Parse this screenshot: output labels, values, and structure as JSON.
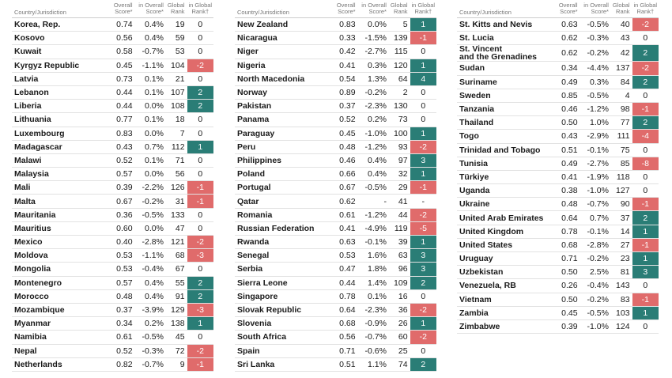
{
  "headers": [
    "Country/Jurisdiction",
    "Overall\nScore*",
    "in Overall\nScore*",
    "Global\nRank",
    "in Global\nRank†"
  ],
  "tables": [
    {
      "rows": [
        [
          "Korea, Rep.",
          "0.74",
          "0.4%",
          "19",
          "0"
        ],
        [
          "Kosovo",
          "0.56",
          "0.4%",
          "59",
          "0"
        ],
        [
          "Kuwait",
          "0.58",
          "-0.7%",
          "53",
          "0"
        ],
        [
          "Kyrgyz Republic",
          "0.45",
          "-1.1%",
          "104",
          "-2"
        ],
        [
          "Latvia",
          "0.73",
          "0.1%",
          "21",
          "0"
        ],
        [
          "Lebanon",
          "0.44",
          "0.1%",
          "107",
          "2"
        ],
        [
          "Liberia",
          "0.44",
          "0.0%",
          "108",
          "2"
        ],
        [
          "Lithuania",
          "0.77",
          "0.1%",
          "18",
          "0"
        ],
        [
          "Luxembourg",
          "0.83",
          "0.0%",
          "7",
          "0"
        ],
        [
          "Madagascar",
          "0.43",
          "0.7%",
          "112",
          "1"
        ],
        [
          "Malawi",
          "0.52",
          "0.1%",
          "71",
          "0"
        ],
        [
          "Malaysia",
          "0.57",
          "0.0%",
          "56",
          "0"
        ],
        [
          "Mali",
          "0.39",
          "-2.2%",
          "126",
          "-1"
        ],
        [
          "Malta",
          "0.67",
          "-0.2%",
          "31",
          "-1"
        ],
        [
          "Mauritania",
          "0.36",
          "-0.5%",
          "133",
          "0"
        ],
        [
          "Mauritius",
          "0.60",
          "0.0%",
          "47",
          "0"
        ],
        [
          "Mexico",
          "0.40",
          "-2.8%",
          "121",
          "-2"
        ],
        [
          "Moldova",
          "0.53",
          "-1.1%",
          "68",
          "-3"
        ],
        [
          "Mongolia",
          "0.53",
          "-0.4%",
          "67",
          "0"
        ],
        [
          "Montenegro",
          "0.57",
          "0.4%",
          "55",
          "2"
        ],
        [
          "Morocco",
          "0.48",
          "0.4%",
          "91",
          "2"
        ],
        [
          "Mozambique",
          "0.37",
          "-3.9%",
          "129",
          "-3"
        ],
        [
          "Myanmar",
          "0.34",
          "0.2%",
          "138",
          "1"
        ],
        [
          "Namibia",
          "0.61",
          "-0.5%",
          "45",
          "0"
        ],
        [
          "Nepal",
          "0.52",
          "-0.3%",
          "72",
          "-2"
        ],
        [
          "Netherlands",
          "0.82",
          "-0.7%",
          "9",
          "-1"
        ]
      ]
    },
    {
      "rows": [
        [
          "New Zealand",
          "0.83",
          "0.0%",
          "5",
          "1"
        ],
        [
          "Nicaragua",
          "0.33",
          "-1.5%",
          "139",
          "-1"
        ],
        [
          "Niger",
          "0.42",
          "-2.7%",
          "115",
          "0"
        ],
        [
          "Nigeria",
          "0.41",
          "0.3%",
          "120",
          "1"
        ],
        [
          "North Macedonia",
          "0.54",
          "1.3%",
          "64",
          "4"
        ],
        [
          "Norway",
          "0.89",
          "-0.2%",
          "2",
          "0"
        ],
        [
          "Pakistan",
          "0.37",
          "-2.3%",
          "130",
          "0"
        ],
        [
          "Panama",
          "0.52",
          "0.2%",
          "73",
          "0"
        ],
        [
          "Paraguay",
          "0.45",
          "-1.0%",
          "100",
          "1"
        ],
        [
          "Peru",
          "0.48",
          "-1.2%",
          "93",
          "-2"
        ],
        [
          "Philippines",
          "0.46",
          "0.4%",
          "97",
          "3"
        ],
        [
          "Poland",
          "0.66",
          "0.4%",
          "32",
          "1"
        ],
        [
          "Portugal",
          "0.67",
          "-0.5%",
          "29",
          "-1"
        ],
        [
          "Qatar",
          "0.62",
          "-",
          "41",
          "-"
        ],
        [
          "Romania",
          "0.61",
          "-1.2%",
          "44",
          "-2"
        ],
        [
          "Russian Federation",
          "0.41",
          "-4.9%",
          "119",
          "-5"
        ],
        [
          "Rwanda",
          "0.63",
          "-0.1%",
          "39",
          "1"
        ],
        [
          "Senegal",
          "0.53",
          "1.6%",
          "63",
          "3"
        ],
        [
          "Serbia",
          "0.47",
          "1.8%",
          "96",
          "3"
        ],
        [
          "Sierra Leone",
          "0.44",
          "1.4%",
          "109",
          "2"
        ],
        [
          "Singapore",
          "0.78",
          "0.1%",
          "16",
          "0"
        ],
        [
          "Slovak Republic",
          "0.64",
          "-2.3%",
          "36",
          "-2"
        ],
        [
          "Slovenia",
          "0.68",
          "-0.9%",
          "26",
          "1"
        ],
        [
          "South Africa",
          "0.56",
          "-0.7%",
          "60",
          "-2"
        ],
        [
          "Spain",
          "0.71",
          "-0.6%",
          "25",
          "0"
        ],
        [
          "Sri Lanka",
          "0.51",
          "1.1%",
          "74",
          "2"
        ]
      ]
    },
    {
      "rows": [
        [
          "St. Kitts and Nevis",
          "0.63",
          "-0.5%",
          "40",
          "-2"
        ],
        [
          "St. Lucia",
          "0.62",
          "-0.3%",
          "43",
          "0"
        ],
        [
          "St. Vincent\nand the Grenadines",
          "0.62",
          "-0.2%",
          "42",
          "2"
        ],
        [
          "Sudan",
          "0.34",
          "-4.4%",
          "137",
          "-2"
        ],
        [
          "Suriname",
          "0.49",
          "0.3%",
          "84",
          "2"
        ],
        [
          "Sweden",
          "0.85",
          "-0.5%",
          "4",
          "0"
        ],
        [
          "Tanzania",
          "0.46",
          "-1.2%",
          "98",
          "-1"
        ],
        [
          "Thailand",
          "0.50",
          "1.0%",
          "77",
          "2"
        ],
        [
          "Togo",
          "0.43",
          "-2.9%",
          "111",
          "-4"
        ],
        [
          "Trinidad and Tobago",
          "0.51",
          "-0.1%",
          "75",
          "0"
        ],
        [
          "Tunisia",
          "0.49",
          "-2.7%",
          "85",
          "-8"
        ],
        [
          "Türkiye",
          "0.41",
          "-1.9%",
          "118",
          "0"
        ],
        [
          "Uganda",
          "0.38",
          "-1.0%",
          "127",
          "0"
        ],
        [
          "Ukraine",
          "0.48",
          "-0.7%",
          "90",
          "-1"
        ],
        [
          "United Arab Emirates",
          "0.64",
          "0.7%",
          "37",
          "2"
        ],
        [
          "United Kingdom",
          "0.78",
          "-0.1%",
          "14",
          "1"
        ],
        [
          "United States",
          "0.68",
          "-2.8%",
          "27",
          "-1"
        ],
        [
          "Uruguay",
          "0.71",
          "-0.2%",
          "23",
          "1"
        ],
        [
          "Uzbekistan",
          "0.50",
          "2.5%",
          "81",
          "3"
        ],
        [
          "Venezuela, RB",
          "0.26",
          "-0.4%",
          "143",
          "0"
        ],
        [
          "Vietnam",
          "0.50",
          "-0.2%",
          "83",
          "-1"
        ],
        [
          "Zambia",
          "0.45",
          "-0.5%",
          "103",
          "1"
        ],
        [
          "Zimbabwe",
          "0.39",
          "-1.0%",
          "124",
          "0"
        ]
      ]
    }
  ]
}
